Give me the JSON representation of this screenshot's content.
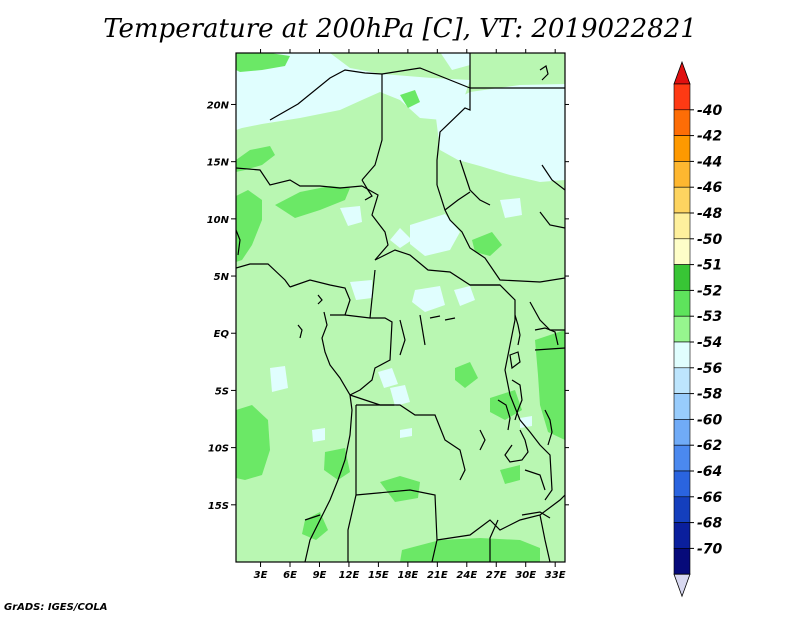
{
  "title": "Temperature at 200hPa [C], VT: 2019022821",
  "footer": "GrADS: IGES/COLA",
  "map": {
    "lon_range": [
      0.5,
      34
    ],
    "lat_range": [
      -20,
      24.5
    ],
    "lon_ticks": [
      "3E",
      "6E",
      "9E",
      "12E",
      "15E",
      "18E",
      "21E",
      "24E",
      "27E",
      "30E",
      "33E"
    ],
    "lon_tick_values": [
      3,
      6,
      9,
      12,
      15,
      18,
      21,
      24,
      27,
      30,
      33
    ],
    "lat_ticks": [
      "20N",
      "15N",
      "10N",
      "5N",
      "EQ",
      "5S",
      "10S",
      "15S"
    ],
    "lat_tick_values": [
      20,
      15,
      10,
      5,
      0,
      -5,
      -10,
      -15
    ]
  },
  "colorbar": {
    "labels": [
      "-40",
      "-42",
      "-44",
      "-46",
      "-48",
      "-50",
      "-51",
      "-52",
      "-53",
      "-54",
      "-56",
      "-58",
      "-60",
      "-62",
      "-64",
      "-66",
      "-68",
      "-70"
    ],
    "colors": [
      "#fe3a14",
      "#fd6d06",
      "#fe9900",
      "#feb730",
      "#fdd460",
      "#fef09d",
      "#fefec8",
      "#38c535",
      "#5ee35c",
      "#96f68e",
      "#e0fefe",
      "#bde5fd",
      "#98ccfc",
      "#70abf7",
      "#4b89ef",
      "#2a64df",
      "#143fbd",
      "#0a1f9d",
      "#060a7a"
    ],
    "top_arrow_color": "#e01010",
    "bottom_arrow_color": "#d8d8f0"
  }
}
